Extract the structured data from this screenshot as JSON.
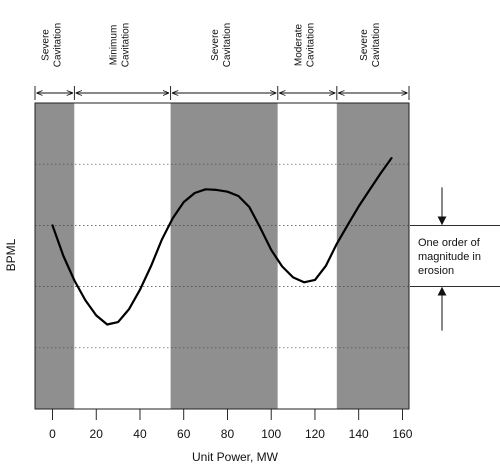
{
  "chart_data": {
    "type": "line",
    "xlabel": "Unit Power, MW",
    "ylabel": "BPML",
    "xlim": [
      -8,
      163
    ],
    "ylim": [
      0,
      5
    ],
    "x_ticks": [
      0,
      20,
      40,
      60,
      80,
      100,
      120,
      140,
      160
    ],
    "y_tick_labels_shown": false,
    "grid": "horizontal dotted",
    "zones": [
      {
        "label": [
          "Severe",
          "Cavitation"
        ],
        "x0": -8,
        "x1": 10,
        "shaded": true
      },
      {
        "label": [
          "Minimum",
          "Cavitation"
        ],
        "x0": 10,
        "x1": 54,
        "shaded": false
      },
      {
        "label": [
          "Severe",
          "Cavitation"
        ],
        "x0": 54,
        "x1": 103,
        "shaded": true
      },
      {
        "label": [
          "Moderate",
          "Cavitation"
        ],
        "x0": 103,
        "x1": 130,
        "shaded": false
      },
      {
        "label": [
          "Severe",
          "Cavitation"
        ],
        "x0": 130,
        "x1": 163,
        "shaded": true
      }
    ],
    "series": [
      {
        "x": [
          0,
          5,
          10,
          15,
          20,
          25,
          30,
          35,
          40,
          45,
          50,
          55,
          60,
          65,
          70,
          75,
          80,
          85,
          90,
          95,
          100,
          105,
          110,
          115,
          120,
          125,
          130,
          135,
          140,
          145,
          150,
          155
        ],
        "y": [
          3.0,
          2.5,
          2.1,
          1.78,
          1.53,
          1.38,
          1.42,
          1.63,
          1.95,
          2.33,
          2.77,
          3.12,
          3.38,
          3.53,
          3.59,
          3.58,
          3.55,
          3.48,
          3.3,
          2.96,
          2.6,
          2.33,
          2.15,
          2.07,
          2.11,
          2.34,
          2.7,
          3.01,
          3.31,
          3.58,
          3.85,
          4.1
        ]
      }
    ],
    "annotation": {
      "text": [
        "One order of",
        "magnitude in",
        "erosion"
      ],
      "y_top": 3.0,
      "y_bottom": 2.0
    }
  }
}
